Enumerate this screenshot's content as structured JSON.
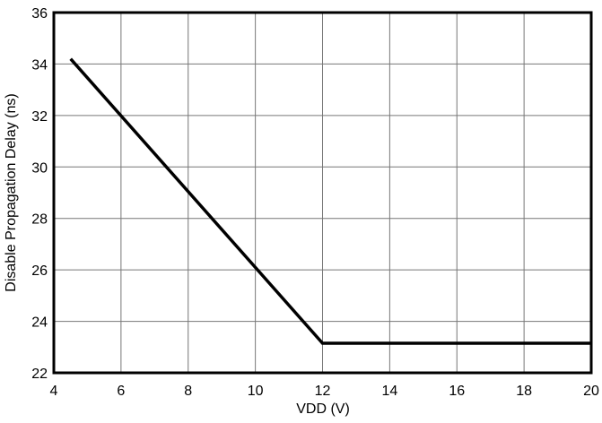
{
  "chart_data": {
    "type": "line",
    "title": "",
    "xlabel": "VDD (V)",
    "ylabel": "Disable Propagation Delay (ns)",
    "xlim": [
      4,
      20
    ],
    "ylim": [
      22,
      36
    ],
    "xticks": [
      4,
      6,
      8,
      10,
      12,
      14,
      16,
      18,
      20
    ],
    "yticks": [
      22,
      24,
      26,
      28,
      30,
      32,
      34,
      36
    ],
    "grid": true,
    "legend": "none",
    "series": [
      {
        "color": "#000000",
        "x": [
          4.5,
          12,
          20
        ],
        "y": [
          34.2,
          23.15,
          23.15
        ]
      }
    ]
  }
}
